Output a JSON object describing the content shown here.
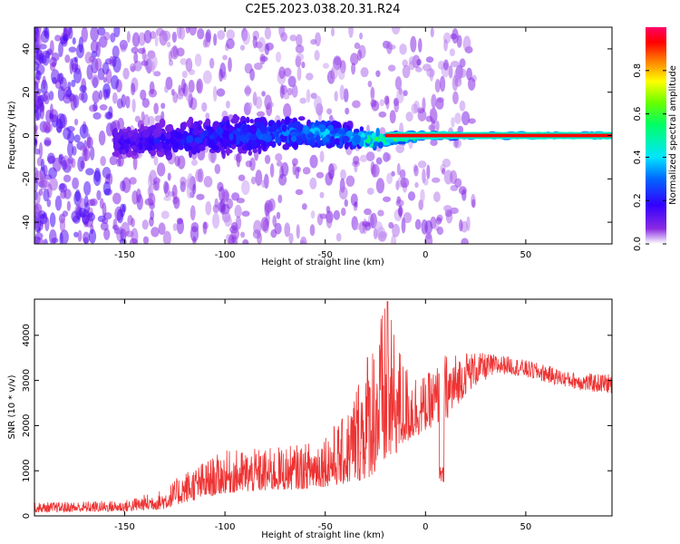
{
  "title": "C2E5.2023.038.20.31.R24",
  "chart_data": [
    {
      "type": "heatmap",
      "name": "spectrogram",
      "xlabel": "Height of straight line (km)",
      "ylabel": "Frequency (Hz)",
      "xlim": [
        -195,
        93
      ],
      "ylim": [
        -50,
        50
      ],
      "xticks": [
        -150,
        -100,
        -50,
        0,
        50
      ],
      "yticks": [
        -40,
        -20,
        0,
        20,
        40
      ],
      "colorbar": {
        "label": "Normalized spectral amplitude",
        "range": [
          0,
          1
        ],
        "ticks": [
          0.0,
          0.2,
          0.4,
          0.6,
          0.8
        ]
      },
      "description_points": {
        "x": [
          -150,
          -125,
          -100,
          -75,
          -50,
          -35,
          -25,
          -10,
          0,
          25,
          50,
          90
        ],
        "center_hz": [
          -3,
          -2,
          0,
          1,
          1,
          -1,
          -2,
          -1,
          0,
          0,
          0,
          0
        ],
        "half_width_hz": [
          9,
          10,
          11,
          10,
          8,
          6,
          5,
          3,
          2,
          1.5,
          1.5,
          1.5
        ],
        "peak_amplitude": [
          0.2,
          0.25,
          0.3,
          0.35,
          0.45,
          0.45,
          0.7,
          0.8,
          0.9,
          0.95,
          0.95,
          0.95
        ]
      }
    },
    {
      "type": "line",
      "name": "snr",
      "xlabel": "Height of straight line (km)",
      "ylabel": "SNR (10 * v/v)",
      "xlim": [
        -195,
        93
      ],
      "ylim": [
        0,
        4800
      ],
      "xticks": [
        -150,
        -100,
        -50,
        0,
        50
      ],
      "yticks": [
        0,
        1000,
        2000,
        3000,
        4000
      ],
      "color": "#ee3333",
      "series": [
        {
          "name": "SNR envelope",
          "x": [
            -195,
            -150,
            -130,
            -120,
            -100,
            -80,
            -60,
            -40,
            -30,
            -20,
            -10,
            0,
            10,
            20,
            30,
            40,
            50,
            60,
            70,
            80,
            93
          ],
          "y_low": [
            80,
            100,
            150,
            300,
            500,
            550,
            600,
            700,
            800,
            1100,
            1600,
            1900,
            2100,
            2700,
            3000,
            3150,
            3050,
            2950,
            2850,
            2750,
            2700
          ],
          "y_high": [
            300,
            350,
            600,
            1000,
            1450,
            1500,
            1600,
            2200,
            3700,
            4750,
            3400,
            3100,
            3600,
            3650,
            3600,
            3550,
            3450,
            3350,
            3200,
            3150,
            3150
          ]
        }
      ]
    }
  ]
}
